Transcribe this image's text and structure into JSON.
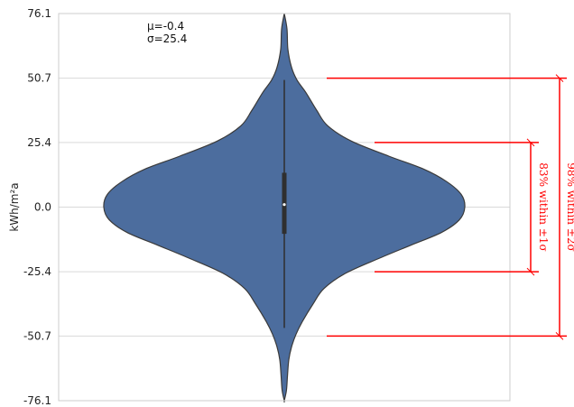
{
  "chart_data": {
    "type": "violin",
    "ylabel": "kWh/m²a",
    "yticks": [
      -76.1,
      -50.7,
      -25.4,
      0.0,
      25.4,
      50.7,
      76.1
    ],
    "ytick_labels": [
      "-76.1",
      "-50.7",
      "-25.4",
      "0.0",
      "25.4",
      "50.7",
      "76.1"
    ],
    "ylim": [
      -76.1,
      76.1
    ],
    "grid": "horizontal",
    "stats": {
      "mean": -0.4,
      "std": 25.4,
      "mean_label": "μ=-0.4",
      "std_label": "σ=25.4"
    },
    "violin": {
      "color": "#4c6d9e",
      "edge_color": "#3a3a3a",
      "box_color": "#2f2f2f",
      "median_color": "#ffffff",
      "density_profile": [
        {
          "y": 76.1,
          "w": 0.0
        },
        {
          "y": 70.0,
          "w": 0.015
        },
        {
          "y": 62.0,
          "w": 0.02
        },
        {
          "y": 55.0,
          "w": 0.04
        },
        {
          "y": 50.0,
          "w": 0.07
        },
        {
          "y": 45.0,
          "w": 0.12
        },
        {
          "y": 38.0,
          "w": 0.18
        },
        {
          "y": 32.0,
          "w": 0.24
        },
        {
          "y": 26.0,
          "w": 0.37
        },
        {
          "y": 20.0,
          "w": 0.58
        },
        {
          "y": 15.0,
          "w": 0.77
        },
        {
          "y": 10.0,
          "w": 0.9
        },
        {
          "y": 5.0,
          "w": 0.98
        },
        {
          "y": 0.0,
          "w": 1.0
        },
        {
          "y": -5.0,
          "w": 0.97
        },
        {
          "y": -10.0,
          "w": 0.87
        },
        {
          "y": -15.0,
          "w": 0.7
        },
        {
          "y": -20.0,
          "w": 0.53
        },
        {
          "y": -26.0,
          "w": 0.34
        },
        {
          "y": -32.0,
          "w": 0.22
        },
        {
          "y": -38.0,
          "w": 0.16
        },
        {
          "y": -45.0,
          "w": 0.1
        },
        {
          "y": -50.0,
          "w": 0.065
        },
        {
          "y": -55.0,
          "w": 0.04
        },
        {
          "y": -60.0,
          "w": 0.025
        },
        {
          "y": -66.0,
          "w": 0.018
        },
        {
          "y": -72.0,
          "w": 0.012
        },
        {
          "y": -76.1,
          "w": 0.0
        }
      ],
      "box": {
        "q1": -10.5,
        "q3": 13.5,
        "median": 1.0,
        "whisker_low": -47.5,
        "whisker_high": 50.0
      }
    },
    "annotations": [
      {
        "label": "83% within ±1σ",
        "y_low": -25.4,
        "y_high": 25.4,
        "color": "#ff0000"
      },
      {
        "label": "98% within ±2σ",
        "y_low": -50.7,
        "y_high": 50.7,
        "color": "#ff0000"
      }
    ]
  }
}
